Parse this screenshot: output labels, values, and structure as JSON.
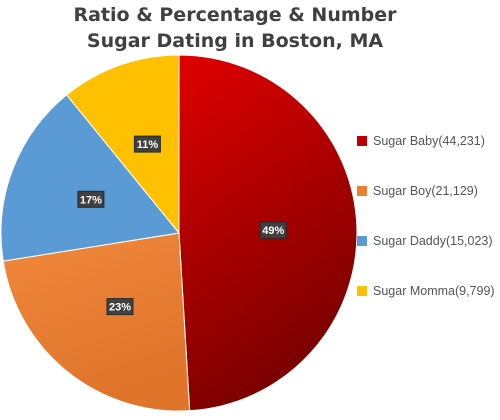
{
  "chart_data": {
    "type": "pie",
    "title_lines": [
      "Ratio & Percentage & Number",
      "Sugar Dating in Boston, MA"
    ],
    "slices": [
      {
        "legend": "Sugar Baby(44,231)",
        "value": 44231,
        "label": "49%",
        "color": "#c00000",
        "color_light": "#e00000",
        "color_dark": "#7a0000"
      },
      {
        "legend": "Sugar Boy(21,129)",
        "value": 21129,
        "label": "23%",
        "color": "#ed7d31",
        "color_light": "#f0883c",
        "color_dark": "#e0742a"
      },
      {
        "legend": "Sugar Daddy(15,023)",
        "value": 15023,
        "label": "17%",
        "color": "#5b9bd5",
        "color_light": "#5b9bd5",
        "color_dark": "#5b9bd5"
      },
      {
        "legend": "Sugar Momma(9,799)",
        "value": 9799,
        "label": "11%",
        "color": "#ffc000",
        "color_light": "#ffc000",
        "color_dark": "#ffc000"
      }
    ],
    "start_angle": "12 o'clock",
    "direction": "clockwise",
    "legend_position": "right",
    "data_label_style": "white bold text on dark boxes"
  }
}
